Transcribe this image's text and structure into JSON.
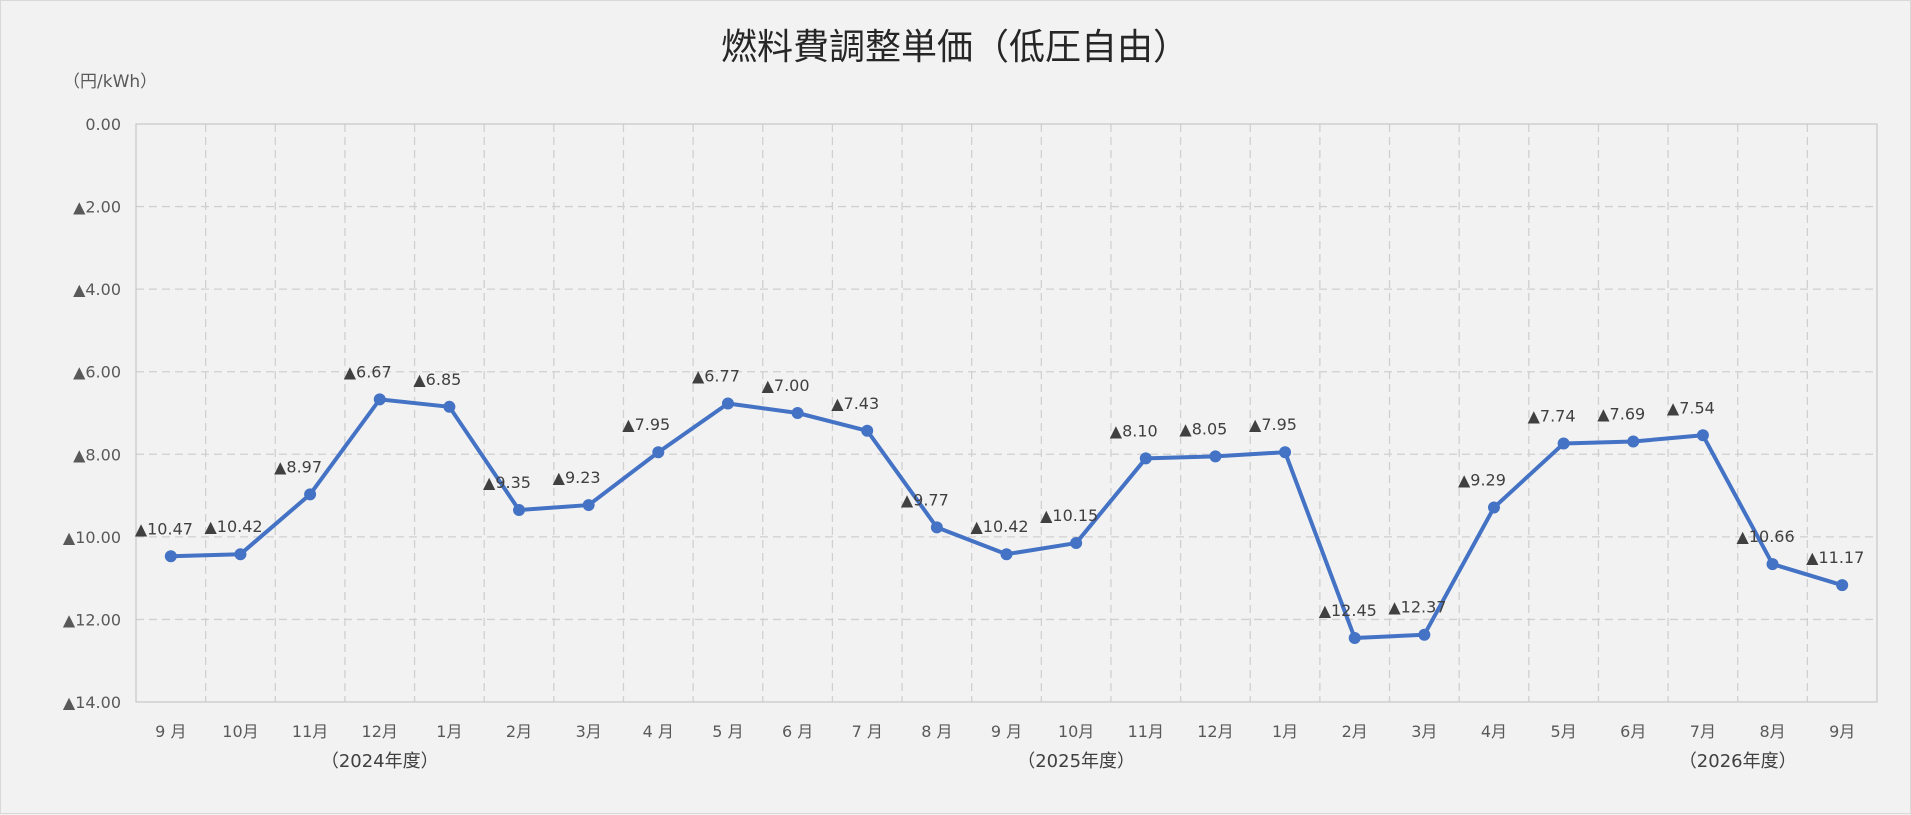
{
  "chart_data": {
    "type": "line",
    "title": "燃料費調整単価（低圧自由）",
    "ylabel": "（円/kWh）",
    "ylim": [
      0,
      -14
    ],
    "y_ticks": [
      0,
      -2,
      -4,
      -6,
      -8,
      -10,
      -12,
      -14
    ],
    "y_tick_labels": [
      "0.00",
      "▲2.00",
      "▲4.00",
      "▲6.00",
      "▲8.00",
      "▲10.00",
      "▲12.00",
      "▲14.00"
    ],
    "categories": [
      "9 月",
      "10月",
      "11月",
      "12月",
      "1月",
      "2月",
      "3月",
      "4 月",
      "5 月",
      "6 月",
      "7 月",
      "8 月",
      "9 月",
      "10月",
      "11月",
      "12月",
      "1月",
      "2月",
      "3月",
      "4月",
      "5月",
      "6月",
      "7月",
      "8月",
      "9月"
    ],
    "fiscal_year_labels": [
      {
        "text": "（2024年度）",
        "category_index": 3
      },
      {
        "text": "（2025年度）",
        "category_index": 13
      },
      {
        "text": "（2026年度）",
        "category_index": 22.5
      }
    ],
    "series": [
      {
        "values": [
          -10.47,
          -10.42,
          -8.97,
          -6.67,
          -6.85,
          -9.35,
          -9.23,
          -7.95,
          -6.77,
          -7.0,
          -7.43,
          -9.77,
          -10.42,
          -10.15,
          -8.1,
          -8.05,
          -7.95,
          -12.45,
          -12.37,
          -9.29,
          -7.74,
          -7.69,
          -7.54,
          -10.66,
          -11.17
        ],
        "data_labels": [
          "▲10.47",
          "▲10.42",
          "▲8.97",
          "▲6.67",
          "▲6.85",
          "▲9.35",
          "▲9.23",
          "▲7.95",
          "▲6.77",
          "▲7.00",
          "▲7.43",
          "▲9.77",
          "▲10.42",
          "▲10.15",
          "▲8.10",
          "▲8.05",
          "▲7.95",
          "▲12.45",
          "▲12.37",
          "▲9.29",
          "▲7.74",
          "▲7.69",
          "▲7.54",
          "▲10.66",
          "▲11.17"
        ]
      }
    ],
    "grid": true,
    "legend": "none",
    "colors": {
      "line": "#4472c4",
      "grid": "#d0d0d0",
      "text": "#595959"
    }
  }
}
